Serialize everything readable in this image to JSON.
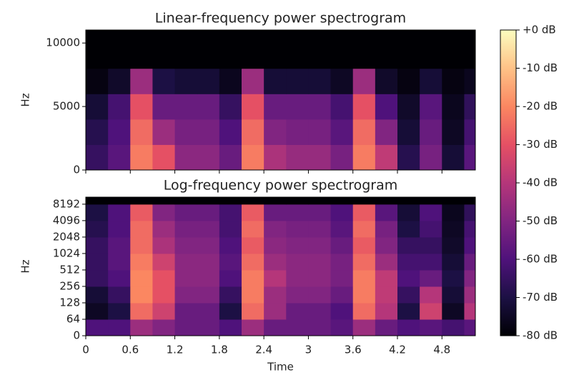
{
  "chart_data": [
    {
      "type": "heatmap",
      "title": "Linear-frequency power spectrogram",
      "y_label": "Hz",
      "yscale": "linear",
      "x": [
        0,
        0.3,
        0.6,
        0.9,
        1.2,
        1.5,
        1.8,
        2.1,
        2.4,
        2.7,
        3.0,
        3.3,
        3.6,
        3.9,
        4.2,
        4.5,
        4.8,
        5.1,
        5.25
      ],
      "y": [
        0,
        2000,
        4000,
        6000,
        8000,
        11025
      ],
      "values": [
        [
          -65,
          -58,
          -22,
          -30,
          -48,
          -48,
          -55,
          -22,
          -42,
          -46,
          -46,
          -52,
          -22,
          -38,
          -68,
          -52,
          -72,
          -58
        ],
        [
          -68,
          -60,
          -25,
          -45,
          -52,
          -52,
          -60,
          -25,
          -50,
          -52,
          -52,
          -58,
          -25,
          -50,
          -72,
          -55,
          -75,
          -62
        ],
        [
          -72,
          -62,
          -30,
          -55,
          -55,
          -55,
          -65,
          -30,
          -55,
          -55,
          -55,
          -62,
          -30,
          -60,
          -74,
          -58,
          -76,
          -66
        ],
        [
          -78,
          -74,
          -45,
          -70,
          -72,
          -72,
          -76,
          -45,
          -72,
          -72,
          -72,
          -75,
          -45,
          -74,
          -78,
          -72,
          -78,
          -76
        ],
        [
          -80,
          -80,
          -80,
          -80,
          -80,
          -80,
          -80,
          -80,
          -80,
          -80,
          -80,
          -80,
          -80,
          -80,
          -80,
          -80,
          -80,
          -80
        ]
      ],
      "xlim": [
        0,
        5.25
      ],
      "xticks": [
        0,
        0.6,
        1.2,
        1.8,
        2.4,
        3,
        3.6,
        4.2,
        4.8
      ],
      "ylim": [
        0,
        11025
      ],
      "yticks": [
        0,
        5000,
        10000
      ]
    },
    {
      "type": "heatmap",
      "title": "Log-frequency power spectrogram",
      "y_label": "Hz",
      "x_label": "Time",
      "yscale": "symlog",
      "linthresh": 64,
      "x": [
        0,
        0.3,
        0.6,
        0.9,
        1.2,
        1.5,
        1.8,
        2.1,
        2.4,
        2.7,
        3.0,
        3.3,
        3.6,
        3.9,
        4.2,
        4.5,
        4.8,
        5.1,
        5.25
      ],
      "y": [
        0,
        64,
        128,
        256,
        512,
        1024,
        2048,
        4096,
        8192,
        11025
      ],
      "values": [
        [
          -60,
          -60,
          -45,
          -50,
          -55,
          -55,
          -60,
          -45,
          -55,
          -55,
          -55,
          -58,
          -45,
          -55,
          -60,
          -58,
          -62,
          -58
        ],
        [
          -75,
          -70,
          -25,
          -35,
          -55,
          -55,
          -70,
          -25,
          -45,
          -55,
          -55,
          -60,
          -25,
          -40,
          -70,
          -35,
          -75,
          -40
        ],
        [
          -72,
          -65,
          -20,
          -30,
          -50,
          -50,
          -65,
          -22,
          -45,
          -50,
          -50,
          -55,
          -22,
          -38,
          -65,
          -40,
          -72,
          -45
        ],
        [
          -65,
          -60,
          -20,
          -30,
          -48,
          -48,
          -60,
          -22,
          -40,
          -48,
          -48,
          -52,
          -22,
          -38,
          -60,
          -55,
          -70,
          -50
        ],
        [
          -65,
          -58,
          -22,
          -35,
          -48,
          -48,
          -58,
          -25,
          -45,
          -48,
          -48,
          -52,
          -25,
          -45,
          -62,
          -62,
          -72,
          -55
        ],
        [
          -65,
          -58,
          -25,
          -42,
          -50,
          -50,
          -60,
          -28,
          -48,
          -50,
          -50,
          -55,
          -28,
          -50,
          -65,
          -65,
          -74,
          -60
        ],
        [
          -68,
          -60,
          -25,
          -45,
          -52,
          -52,
          -62,
          -25,
          -50,
          -52,
          -52,
          -58,
          -25,
          -52,
          -70,
          -62,
          -75,
          -62
        ],
        [
          -70,
          -60,
          -28,
          -50,
          -55,
          -55,
          -62,
          -28,
          -55,
          -55,
          -55,
          -60,
          -28,
          -58,
          -72,
          -60,
          -76,
          -66
        ],
        [
          -80,
          -80,
          -80,
          -80,
          -80,
          -80,
          -80,
          -80,
          -80,
          -80,
          -80,
          -80,
          -80,
          -80,
          -80,
          -80,
          -80,
          -80
        ]
      ],
      "xlim": [
        0,
        5.25
      ],
      "xticks": [
        0,
        0.6,
        1.2,
        1.8,
        2.4,
        3,
        3.6,
        4.2,
        4.8
      ],
      "ylim": [
        0,
        11025
      ],
      "yticks": [
        0,
        64,
        128,
        256,
        512,
        1024,
        2048,
        4096,
        8192
      ]
    }
  ],
  "colorbar": {
    "clim": [
      -80,
      0
    ],
    "ticks": [
      {
        "value": 0,
        "label": "+0 dB"
      },
      {
        "value": -10,
        "label": "-10 dB"
      },
      {
        "value": -20,
        "label": "-20 dB"
      },
      {
        "value": -30,
        "label": "-30 dB"
      },
      {
        "value": -40,
        "label": "-40 dB"
      },
      {
        "value": -50,
        "label": "-50 dB"
      },
      {
        "value": -60,
        "label": "-60 dB"
      },
      {
        "value": -70,
        "label": "-70 dB"
      },
      {
        "value": -80,
        "label": "-80 dB"
      }
    ]
  }
}
